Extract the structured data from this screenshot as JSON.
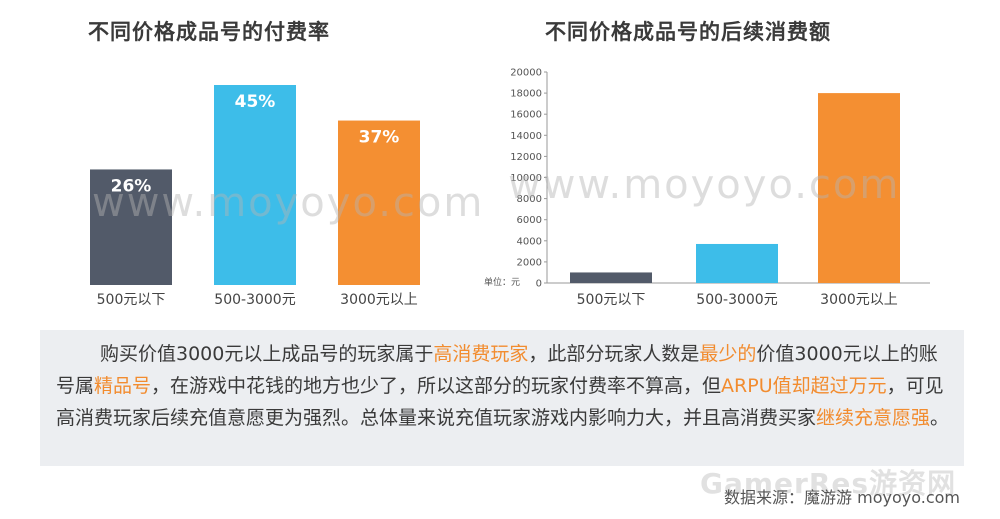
{
  "chart_data": [
    {
      "type": "bar",
      "title": "不同价格成品号的付费率",
      "categories": [
        "500元以下",
        "500-3000元",
        "3000元以上"
      ],
      "values": [
        26,
        45,
        37
      ],
      "value_labels": [
        "26%",
        "45%",
        "37%"
      ],
      "unit": "%",
      "colors": [
        "#525a69",
        "#3dbde9",
        "#f48f32"
      ],
      "ylim": [
        0,
        50
      ],
      "grid": false,
      "y_axis_visible": false
    },
    {
      "type": "bar",
      "title": "不同价格成品号的后续消费额",
      "categories": [
        "500元以下",
        "500-3000元",
        "3000元以上"
      ],
      "values": [
        1000,
        3700,
        18000
      ],
      "colors": [
        "#525a69",
        "#3dbde9",
        "#f48f32"
      ],
      "ylim": [
        0,
        20000
      ],
      "yticks": [
        0,
        2000,
        4000,
        6000,
        8000,
        10000,
        12000,
        14000,
        16000,
        18000,
        20000
      ],
      "ylabel": "单位：元",
      "grid": false
    }
  ],
  "watermark": "www.moyoyo.com",
  "summary": {
    "segments": [
      {
        "text": "购买价值3000元以上成品号的玩家属于",
        "hl": false
      },
      {
        "text": "高消费玩家",
        "hl": true
      },
      {
        "text": "，此部分玩家人数是",
        "hl": false
      },
      {
        "text": "最少的",
        "hl": true
      },
      {
        "text": "价值3000元以上的账号属",
        "hl": false
      },
      {
        "text": "精品号",
        "hl": true
      },
      {
        "text": "，在游戏中花钱的地方也少了，所以这部分的玩家付费率不算高，但",
        "hl": false
      },
      {
        "text": "ARPU值却超过万元",
        "hl": true
      },
      {
        "text": "，可见高消费玩家后续充值意愿更为强烈。总体量来说充值玩家游戏内影响力大，并且高消费买家",
        "hl": false
      },
      {
        "text": "继续充意愿强",
        "hl": true
      },
      {
        "text": "。",
        "hl": false
      }
    ]
  },
  "source": "数据来源：魔游游 moyoyo.com",
  "brand_watermark": "GamerRes游资网",
  "colors": {
    "highlight": "#f28c2f",
    "panel_bg": "#eceef1"
  }
}
